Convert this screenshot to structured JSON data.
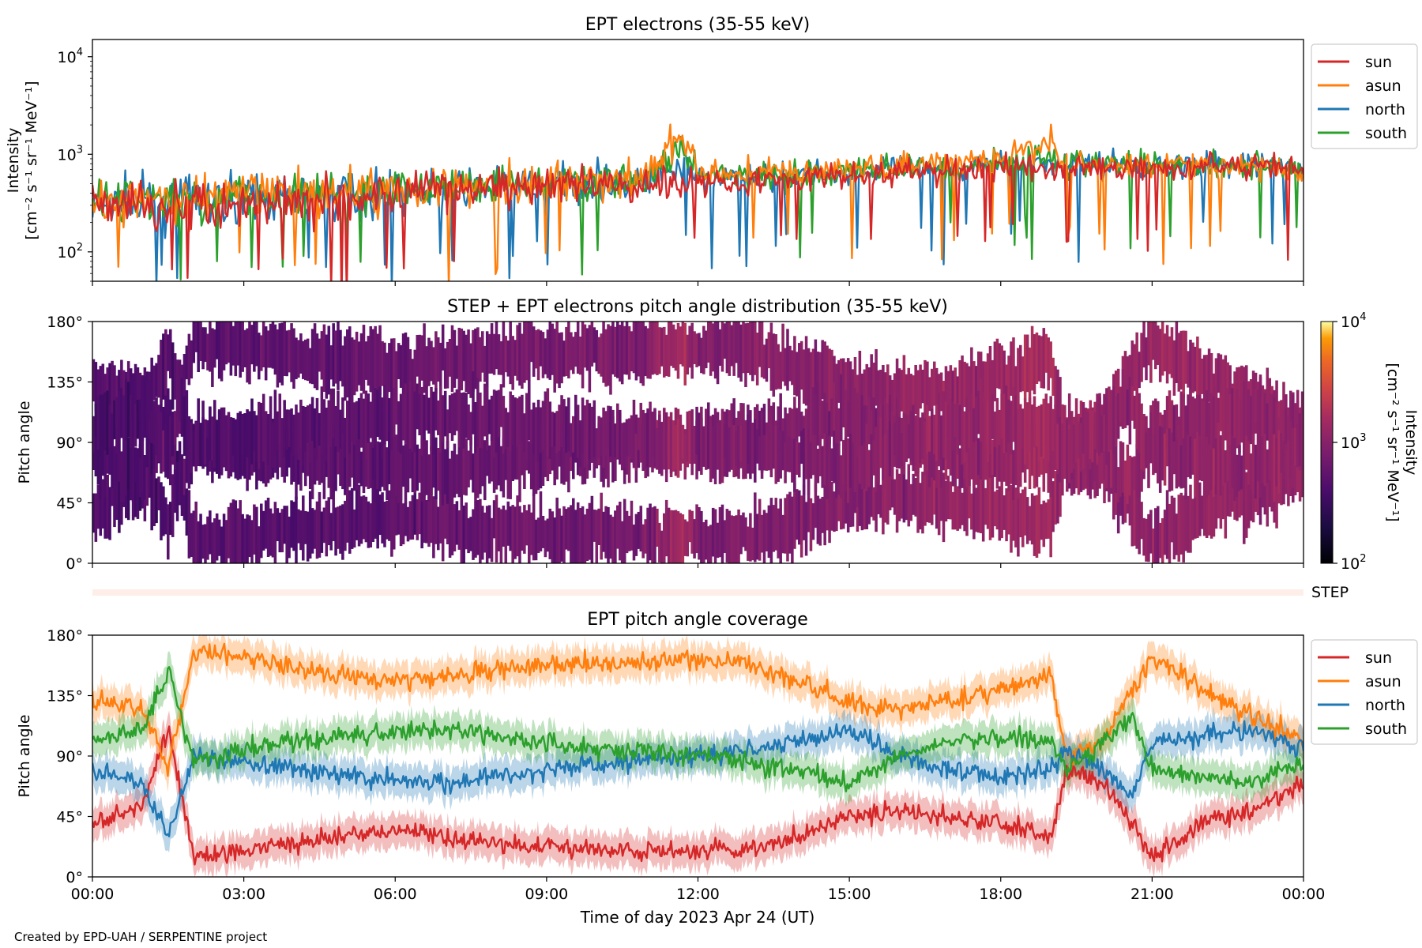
{
  "footer": "Created by EPD-UAH / SERPENTINE project",
  "chart_data": [
    {
      "type": "line",
      "title": "EPT electrons (35-55 keV)",
      "ylabel_1": "Intensity",
      "ylabel_2": "[cm⁻² s⁻¹ sr⁻¹ MeV⁻¹]",
      "yscale": "log",
      "ylim": [
        50,
        15000
      ],
      "yticks": [
        {
          "v": 100,
          "base": "10",
          "exp": "2"
        },
        {
          "v": 1000,
          "base": "10",
          "exp": "3"
        },
        {
          "v": 10000,
          "base": "10",
          "exp": "4"
        }
      ],
      "xlim": [
        0,
        24
      ],
      "x_unit": "hours",
      "legend_position": "outside-right-top",
      "series": [
        {
          "name": "sun",
          "color": "#d62728",
          "x": [
            0,
            1,
            2,
            3,
            4,
            5,
            6,
            7,
            8,
            9,
            10,
            11,
            11.6,
            12,
            13,
            14,
            15,
            16,
            17,
            18,
            19,
            19.2,
            20,
            21,
            22,
            23,
            24
          ],
          "values": [
            280,
            300,
            320,
            330,
            340,
            360,
            400,
            430,
            450,
            470,
            480,
            500,
            560,
            520,
            540,
            560,
            600,
            650,
            700,
            720,
            760,
            700,
            720,
            740,
            760,
            780,
            700
          ]
        },
        {
          "name": "asun",
          "color": "#ff7f0e",
          "x": [
            0,
            1,
            2,
            3,
            4,
            5,
            6,
            7,
            8,
            9,
            10,
            11,
            11.7,
            12,
            13,
            14,
            15,
            16,
            17,
            18,
            19,
            19.2,
            20,
            21,
            22,
            23,
            24
          ],
          "values": [
            330,
            350,
            360,
            380,
            390,
            410,
            440,
            470,
            500,
            520,
            540,
            560,
            1500,
            620,
            650,
            660,
            700,
            760,
            820,
            900,
            1300,
            800,
            800,
            800,
            780,
            760,
            720
          ]
        },
        {
          "name": "north",
          "color": "#1f77b4",
          "x": [
            0,
            1,
            2,
            3,
            4,
            5,
            6,
            7,
            8,
            9,
            10,
            11,
            11.6,
            12,
            13,
            14,
            15,
            16,
            17,
            18,
            19,
            19.2,
            20,
            21,
            22,
            23,
            24
          ],
          "values": [
            300,
            320,
            330,
            350,
            360,
            380,
            410,
            440,
            470,
            490,
            500,
            520,
            700,
            560,
            580,
            600,
            650,
            700,
            740,
            780,
            850,
            780,
            780,
            780,
            770,
            760,
            720
          ]
        },
        {
          "name": "south",
          "color": "#2ca02c",
          "x": [
            0,
            1,
            2,
            3,
            4,
            5,
            6,
            7,
            8,
            9,
            10,
            11,
            11.6,
            12,
            13,
            14,
            15,
            16,
            17,
            18,
            19,
            19.2,
            20,
            21,
            22,
            23,
            24
          ],
          "values": [
            320,
            340,
            350,
            370,
            380,
            400,
            430,
            460,
            490,
            510,
            520,
            540,
            1000,
            590,
            600,
            620,
            680,
            720,
            760,
            820,
            1000,
            800,
            790,
            790,
            780,
            770,
            730
          ]
        }
      ]
    },
    {
      "type": "heatmap",
      "title": "STEP + EPT electrons pitch angle distribution (35-55 keV)",
      "ylabel": "Pitch angle",
      "ylim": [
        0,
        180
      ],
      "yticks": [
        "0°",
        "45°",
        "90°",
        "135°",
        "180°"
      ],
      "xlim": [
        0,
        24
      ],
      "colorbar_label_1": "Intensity",
      "colorbar_label_2": "[cm⁻² s⁻¹ sr⁻¹ MeV⁻¹]",
      "colorbar_ticks": [
        {
          "base": "10",
          "exp": "2"
        },
        {
          "base": "10",
          "exp": "3"
        },
        {
          "base": "10",
          "exp": "4"
        }
      ],
      "colorbar_range": [
        100,
        10000
      ],
      "colormap": "inferno",
      "step_label": "STEP"
    },
    {
      "type": "line",
      "title": "EPT pitch angle coverage",
      "ylabel": "Pitch angle",
      "ylim": [
        0,
        180
      ],
      "yticks": [
        "0°",
        "45°",
        "90°",
        "135°",
        "180°"
      ],
      "xlim": [
        0,
        24
      ],
      "xlabel": "Time of day 2023 Apr 24 (UT)",
      "xticks": [
        "00:00",
        "03:00",
        "06:00",
        "09:00",
        "12:00",
        "15:00",
        "18:00",
        "21:00",
        "00:00"
      ],
      "legend_position": "outside-right-top",
      "series": [
        {
          "name": "sun",
          "color": "#d62728",
          "x": [
            0,
            1,
            1.5,
            2,
            3,
            4,
            5,
            6,
            7,
            8,
            9,
            10,
            11,
            12,
            13,
            14,
            15,
            16,
            17,
            18,
            19,
            19.3,
            20,
            20.6,
            21,
            22,
            23,
            24
          ],
          "values": [
            40,
            55,
            110,
            15,
            20,
            25,
            30,
            35,
            30,
            25,
            22,
            22,
            20,
            18,
            20,
            30,
            45,
            50,
            45,
            40,
            30,
            80,
            70,
            40,
            15,
            40,
            50,
            70
          ]
        },
        {
          "name": "asun",
          "color": "#ff7f0e",
          "x": [
            0,
            1,
            1.5,
            2,
            3,
            4,
            5,
            6,
            7,
            8,
            9,
            10,
            11,
            12,
            13,
            14,
            15,
            16,
            17,
            18,
            19,
            19.3,
            20,
            20.6,
            21,
            22,
            23,
            24
          ],
          "values": [
            130,
            125,
            80,
            165,
            165,
            155,
            150,
            145,
            150,
            155,
            158,
            158,
            160,
            162,
            160,
            145,
            130,
            125,
            130,
            140,
            150,
            90,
            100,
            140,
            165,
            140,
            120,
            100
          ]
        },
        {
          "name": "north",
          "color": "#1f77b4",
          "x": [
            0,
            1,
            1.5,
            2,
            3,
            4,
            5,
            6,
            7,
            8,
            9,
            10,
            11,
            12,
            13,
            14,
            15,
            16,
            17,
            18,
            19,
            19.3,
            20,
            20.6,
            21,
            22,
            23,
            24
          ],
          "values": [
            80,
            70,
            30,
            90,
            85,
            80,
            75,
            72,
            70,
            75,
            80,
            85,
            88,
            90,
            95,
            100,
            110,
            90,
            80,
            75,
            80,
            95,
            80,
            60,
            100,
            105,
            110,
            95
          ]
        },
        {
          "name": "south",
          "color": "#2ca02c",
          "x": [
            0,
            1,
            1.5,
            2,
            3,
            4,
            5,
            6,
            7,
            8,
            9,
            10,
            11,
            12,
            13,
            14,
            15,
            16,
            17,
            18,
            19,
            19.3,
            20,
            20.6,
            21,
            22,
            23,
            24
          ],
          "values": [
            100,
            110,
            155,
            85,
            95,
            100,
            105,
            108,
            110,
            105,
            100,
            95,
            92,
            90,
            85,
            80,
            70,
            90,
            100,
            105,
            100,
            80,
            100,
            120,
            80,
            75,
            70,
            85
          ]
        }
      ]
    }
  ]
}
